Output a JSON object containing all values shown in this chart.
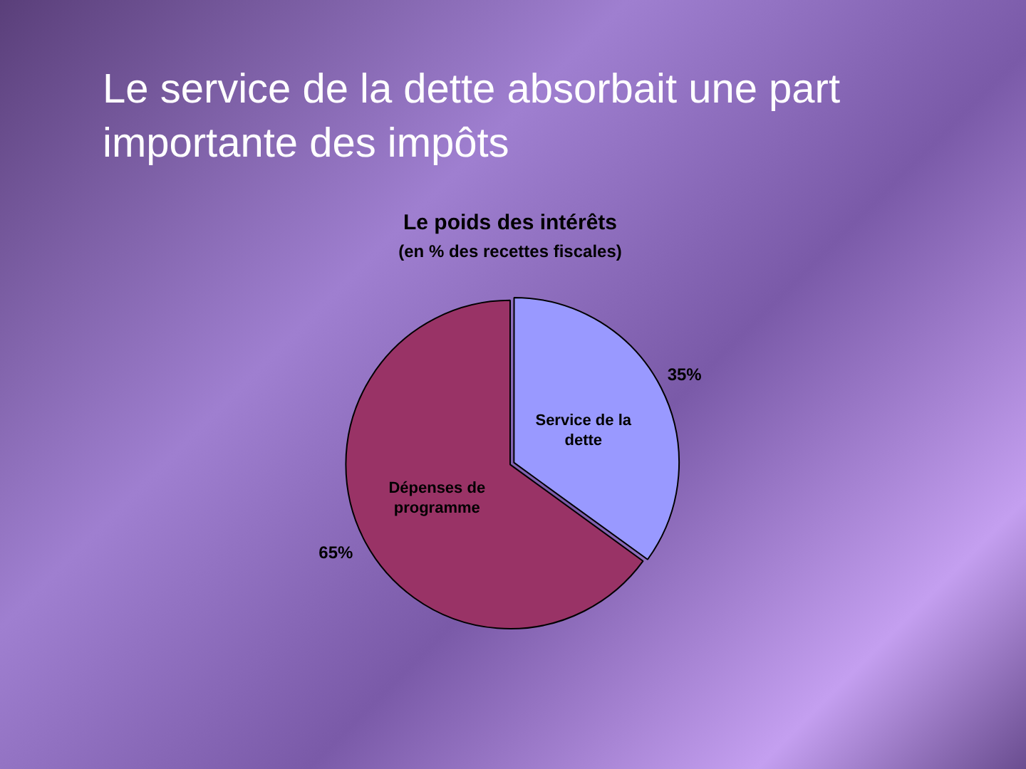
{
  "chart_data": {
    "type": "pie",
    "title": "Le poids des intérêts",
    "subtitle": "(en % des recettes fiscales)",
    "annotations": [
      "Le service de la dette absorbait une part importante des impôts"
    ],
    "categories": [
      "Service de la dette",
      "Dépenses de programme"
    ],
    "values": [
      35,
      65
    ],
    "colors": [
      "#9999ff",
      "#993366"
    ],
    "value_labels": [
      "35%",
      "65%"
    ],
    "legend": false
  }
}
